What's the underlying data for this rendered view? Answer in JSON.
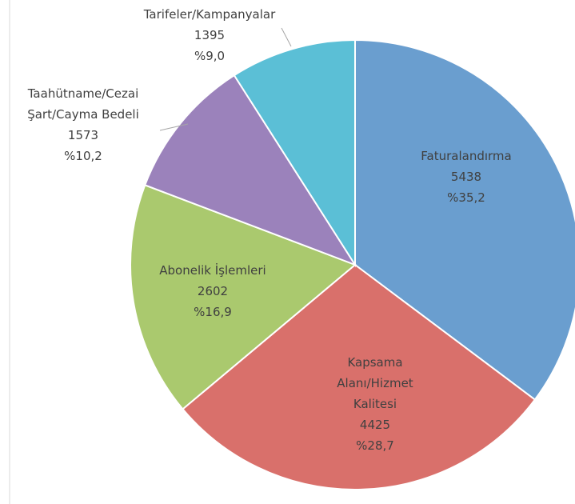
{
  "chart_data": {
    "type": "pie",
    "categories": [
      "Faturalandırma",
      "Kapsama Alanı/Hizmet Kalitesi",
      "Abonelik İşlemleri",
      "Taahütname/Cezai Şart/Cayma Bedeli",
      "Tarifeler/Kampanyalar"
    ],
    "values": [
      5438,
      4425,
      2602,
      1573,
      1395
    ],
    "percent_labels": [
      "%35,2",
      "%28,7",
      "%16,9",
      "%10,2",
      "%9,0"
    ],
    "colors": [
      "#6a9ecf",
      "#d9706b",
      "#aac96e",
      "#9b82bb",
      "#5bbfd6"
    ]
  }
}
